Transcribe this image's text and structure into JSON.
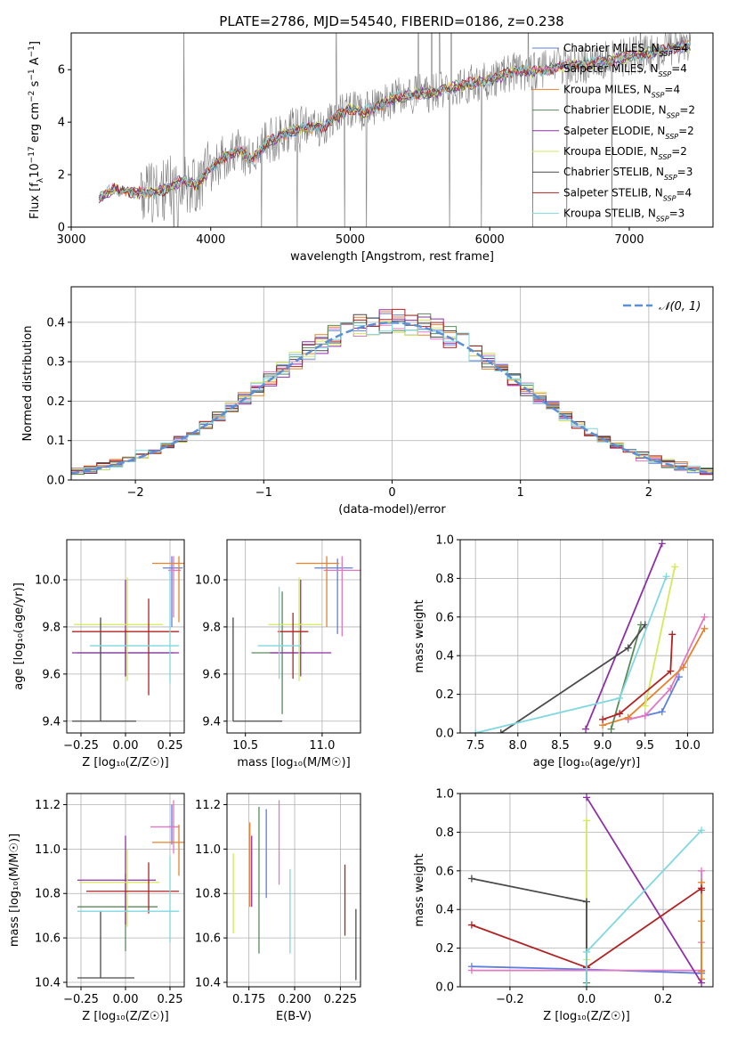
{
  "title": "PLATE=2786, MJD=54540, FIBERID=0186, z=0.238",
  "colors": {
    "Chabrier MILES": "#5b7fde",
    "Salpeter MILES": "#e377c2",
    "Kroupa MILES": "#e8812a",
    "Chabrier ELODIE": "#5a8a5a",
    "Salpeter ELODIE": "#8e2fa8",
    "Kroupa ELODIE": "#d4e85a",
    "Chabrier STELIB": "#4a4a4a",
    "Salpeter STELIB": "#b22222",
    "Kroupa STELIB": "#7fd8e0"
  },
  "chart_data": [
    {
      "id": "spectrum",
      "type": "line",
      "xlabel": "wavelength [Angstrom, rest frame]",
      "ylabel_parts": [
        "Flux [f",
        "λ",
        "10",
        "−17",
        " erg cm",
        "−2",
        " s",
        "−1",
        " A",
        "−1",
        "]"
      ],
      "xlim": [
        3000,
        7600
      ],
      "ylim": [
        0,
        7.4
      ],
      "xticks": [
        3000,
        4000,
        5000,
        6000,
        7000
      ],
      "yticks": [
        0,
        2,
        4,
        6
      ],
      "data_color": "#808080",
      "model_x": [
        3200,
        3300,
        3400,
        3500,
        3600,
        3700,
        3800,
        3900,
        4000,
        4100,
        4200,
        4300,
        4400,
        4500,
        4600,
        4700,
        4800,
        4900,
        5000,
        5100,
        5200,
        5300,
        5400,
        5500,
        5600,
        5700,
        5800,
        5900,
        6000,
        6100,
        6200,
        6300,
        6400,
        6500,
        6600,
        6700,
        6800,
        6900,
        7000,
        7100,
        7200,
        7300,
        7400
      ],
      "model_y": [
        1.1,
        1.45,
        1.35,
        1.3,
        1.3,
        1.5,
        1.8,
        1.6,
        2.2,
        2.7,
        2.9,
        2.6,
        3.2,
        3.5,
        3.7,
        3.8,
        3.8,
        4.2,
        4.5,
        4.4,
        4.6,
        4.9,
        5.0,
        5.1,
        5.1,
        5.3,
        5.4,
        5.5,
        5.6,
        5.8,
        6.0,
        5.9,
        6.0,
        6.1,
        6.2,
        6.2,
        6.3,
        6.4,
        6.5,
        6.6,
        6.7,
        6.8,
        6.9
      ],
      "legend": [
        {
          "name": "Chabrier MILES",
          "n": "4"
        },
        {
          "name": "Salpeter MILES",
          "n": "4"
        },
        {
          "name": "Kroupa MILES",
          "n": "4"
        },
        {
          "name": "Chabrier ELODIE",
          "n": "2"
        },
        {
          "name": "Salpeter ELODIE",
          "n": "2"
        },
        {
          "name": "Kroupa ELODIE",
          "n": "2"
        },
        {
          "name": "Chabrier STELIB",
          "n": "3"
        },
        {
          "name": "Salpeter STELIB",
          "n": "4"
        },
        {
          "name": "Kroupa STELIB",
          "n": "3"
        }
      ],
      "legend_sub": "SSP",
      "legend_placement": "top-right"
    },
    {
      "id": "residuals",
      "type": "histogram",
      "xlabel": "(data-model)/error",
      "ylabel": "Normed distribution",
      "xlim": [
        -2.5,
        2.5
      ],
      "ylim": [
        0,
        0.49
      ],
      "xticks": [
        -2,
        -1,
        0,
        1,
        2
      ],
      "xticklabels": [
        "−2",
        "−1",
        "0",
        "1",
        "2"
      ],
      "yticks": [
        0,
        0.1,
        0.2,
        0.3,
        0.4
      ],
      "yticklabels": [
        "0.0",
        "0.1",
        "0.2",
        "0.3",
        "0.4"
      ],
      "grid": true,
      "bin_width": 0.1,
      "legend_label": "𝒩(0, 1)",
      "legend_placement": "top-right",
      "normal_color": "#5b8fd6"
    },
    {
      "id": "age-vs-Z",
      "type": "errorbar",
      "xlabel": "Z [log₁₀(Z/Z☉)]",
      "ylabel": "age  [log₁₀(age/yr)]",
      "xlim": [
        -0.33,
        0.33
      ],
      "ylim": [
        9.35,
        10.17
      ],
      "xticks": [
        -0.25,
        0,
        0.25
      ],
      "xticklabels": [
        "−0.25",
        "0.00",
        "0.25"
      ],
      "yticks": [
        9.4,
        9.6,
        9.8,
        10.0
      ],
      "yticklabels": [
        "9.4",
        "9.6",
        "9.8",
        "10.0"
      ],
      "points": [
        {
          "c": "Chabrier MILES",
          "x": 0.26,
          "xe": [
            0.05,
            0.06
          ],
          "y": 10.05,
          "ye": [
            0.25,
            0.05
          ]
        },
        {
          "c": "Salpeter MILES",
          "x": 0.27,
          "xe": [
            0.03,
            0.04
          ],
          "y": 10.04,
          "ye": [
            0.2,
            0.06
          ]
        },
        {
          "c": "Kroupa MILES",
          "x": 0.3,
          "xe": [
            0.15,
            0.03
          ],
          "y": 10.07,
          "ye": [
            0.25,
            0.03
          ]
        },
        {
          "c": "Chabrier ELODIE",
          "x": 0.0,
          "xe": [
            0.27,
            0.27
          ],
          "y": 9.69,
          "ye": [
            0.1,
            0.1
          ]
        },
        {
          "c": "Salpeter ELODIE",
          "x": 0.0,
          "xe": [
            0.3,
            0.3
          ],
          "y": 9.69,
          "ye": [
            0.1,
            0.31
          ]
        },
        {
          "c": "Kroupa ELODIE",
          "x": 0.01,
          "xe": [
            0.3,
            0.2
          ],
          "y": 9.81,
          "ye": [
            0.24,
            0.2
          ]
        },
        {
          "c": "Chabrier STELIB",
          "x": -0.14,
          "xe": [
            0.16,
            0.2
          ],
          "y": 9.4,
          "ye": [
            0.0,
            0.44
          ]
        },
        {
          "c": "Salpeter STELIB",
          "x": 0.13,
          "xe": [
            0.43,
            0.17
          ],
          "y": 9.78,
          "ye": [
            0.27,
            0.14
          ]
        },
        {
          "c": "Kroupa STELIB",
          "x": 0.25,
          "xe": [
            0.45,
            0.05
          ],
          "y": 9.72,
          "ye": [
            0.16,
            0.32
          ]
        }
      ]
    },
    {
      "id": "age-vs-mass",
      "type": "errorbar",
      "xlabel": "mass [log₁₀(M/M☉)]",
      "xlim": [
        10.38,
        11.25
      ],
      "ylim": [
        9.35,
        10.17
      ],
      "xticks": [
        10.5,
        11.0
      ],
      "xticklabels": [
        "10.5",
        "11.0"
      ],
      "yticks": [
        9.4,
        9.6,
        9.8,
        10.0
      ],
      "yticklabels": [
        "9.4",
        "9.6",
        "9.8",
        "10.0"
      ],
      "points": [
        {
          "c": "Chabrier MILES",
          "x": 11.1,
          "xe": [
            0.15,
            0.1
          ],
          "y": 10.05,
          "ye": [
            0.28,
            0.04
          ]
        },
        {
          "c": "Salpeter MILES",
          "x": 11.13,
          "xe": [
            0.12,
            0.12
          ],
          "y": 10.04,
          "ye": [
            0.28,
            0.06
          ]
        },
        {
          "c": "Kroupa MILES",
          "x": 11.03,
          "xe": [
            0.2,
            0.08
          ],
          "y": 10.07,
          "ye": [
            0.27,
            0.03
          ]
        },
        {
          "c": "Chabrier ELODIE",
          "x": 10.74,
          "xe": [
            0.2,
            0.15
          ],
          "y": 9.69,
          "ye": [
            0.26,
            0.26
          ]
        },
        {
          "c": "Salpeter ELODIE",
          "x": 10.86,
          "xe": [
            0.2,
            0.2
          ],
          "y": 9.69,
          "ye": [
            0.1,
            0.31
          ]
        },
        {
          "c": "Kroupa ELODIE",
          "x": 10.85,
          "xe": [
            0.2,
            0.15
          ],
          "y": 9.81,
          "ye": [
            0.24,
            0.2
          ]
        },
        {
          "c": "Chabrier STELIB",
          "x": 10.42,
          "xe": [
            0.0,
            0.32
          ],
          "y": 9.4,
          "ye": [
            0.0,
            0.44
          ]
        },
        {
          "c": "Salpeter STELIB",
          "x": 10.81,
          "xe": [
            0.1,
            0.1
          ],
          "y": 9.78,
          "ye": [
            0.2,
            0.08
          ]
        },
        {
          "c": "Kroupa STELIB",
          "x": 10.72,
          "xe": [
            0.14,
            0.14
          ],
          "y": 9.72,
          "ye": [
            0.14,
            0.25
          ]
        }
      ]
    },
    {
      "id": "massweight-vs-age",
      "type": "line",
      "xlabel": "age  [log₁₀(age/yr)]",
      "ylabel": "mass weight",
      "xlim": [
        7.32,
        10.3
      ],
      "ylim": [
        0,
        1.0
      ],
      "xticks": [
        7.5,
        8.0,
        8.5,
        9.0,
        9.5,
        10.0
      ],
      "xticklabels": [
        "7.5",
        "8.0",
        "8.5",
        "9.0",
        "9.5",
        "10.0"
      ],
      "yticks": [
        0,
        0.2,
        0.4,
        0.6,
        0.8,
        1.0
      ],
      "yticklabels": [
        "0.0",
        "0.2",
        "0.4",
        "0.6",
        "0.8",
        "1.0"
      ],
      "series": [
        {
          "c": "Chabrier MILES",
          "x": [
            9.3,
            9.5,
            9.7,
            9.9
          ],
          "y": [
            0.07,
            0.09,
            0.11,
            0.29
          ]
        },
        {
          "c": "Salpeter MILES",
          "x": [
            9.3,
            9.5,
            9.8,
            10.2
          ],
          "y": [
            0.07,
            0.09,
            0.23,
            0.6
          ]
        },
        {
          "c": "Kroupa MILES",
          "x": [
            9.0,
            9.3,
            9.95,
            10.2
          ],
          "y": [
            0.04,
            0.08,
            0.34,
            0.54
          ]
        },
        {
          "c": "Chabrier ELODIE",
          "x": [
            9.1,
            9.45
          ],
          "y": [
            0.02,
            0.56
          ]
        },
        {
          "c": "Salpeter ELODIE",
          "x": [
            8.8,
            9.7
          ],
          "y": [
            0.02,
            0.98
          ]
        },
        {
          "c": "Kroupa ELODIE",
          "x": [
            9.5,
            9.85
          ],
          "y": [
            0.14,
            0.86
          ]
        },
        {
          "c": "Chabrier STELIB",
          "x": [
            7.8,
            9.3,
            9.5
          ],
          "y": [
            0.0,
            0.44,
            0.56
          ]
        },
        {
          "c": "Salpeter STELIB",
          "x": [
            9.0,
            9.2,
            9.8,
            9.82
          ],
          "y": [
            0.07,
            0.1,
            0.32,
            0.51
          ]
        },
        {
          "c": "Kroupa STELIB",
          "x": [
            7.5,
            9.2,
            9.75
          ],
          "y": [
            0.0,
            0.18,
            0.81
          ]
        }
      ]
    },
    {
      "id": "mass-vs-Z",
      "type": "errorbar",
      "xlabel": "Z [log₁₀(Z/Z☉)]",
      "ylabel": "mass [log₁₀(M/M☉)]",
      "xlim": [
        -0.33,
        0.33
      ],
      "ylim": [
        10.38,
        11.25
      ],
      "xticks": [
        -0.25,
        0,
        0.25
      ],
      "xticklabels": [
        "−0.25",
        "0.00",
        "0.25"
      ],
      "yticks": [
        10.4,
        10.6,
        10.8,
        11.0,
        11.2
      ],
      "yticklabels": [
        "10.4",
        "10.6",
        "10.8",
        "11.0",
        "11.2"
      ],
      "points": [
        {
          "c": "Chabrier MILES",
          "x": 0.26,
          "xe": [
            0.02,
            0.02
          ],
          "y": 11.1,
          "ye": [
            0.08,
            0.1
          ]
        },
        {
          "c": "Salpeter MILES",
          "x": 0.27,
          "xe": [
            0.13,
            0.03
          ],
          "y": 11.1,
          "ye": [
            0.12,
            0.12
          ]
        },
        {
          "c": "Kroupa MILES",
          "x": 0.3,
          "xe": [
            0.15,
            0.03
          ],
          "y": 11.03,
          "ye": [
            0.15,
            0.08
          ]
        },
        {
          "c": "Chabrier ELODIE",
          "x": 0.0,
          "xe": [
            0.27,
            0.18
          ],
          "y": 10.74,
          "ye": [
            0.2,
            0.15
          ]
        },
        {
          "c": "Salpeter ELODIE",
          "x": 0.0,
          "xe": [
            0.27,
            0.17
          ],
          "y": 10.86,
          "ye": [
            0.2,
            0.2
          ]
        },
        {
          "c": "Kroupa ELODIE",
          "x": 0.01,
          "xe": [
            0.27,
            0.18
          ],
          "y": 10.85,
          "ye": [
            0.2,
            0.15
          ]
        },
        {
          "c": "Chabrier STELIB",
          "x": -0.14,
          "xe": [
            0.13,
            0.19
          ],
          "y": 10.42,
          "ye": [
            0.0,
            0.3
          ]
        },
        {
          "c": "Salpeter STELIB",
          "x": 0.13,
          "xe": [
            0.35,
            0.17
          ],
          "y": 10.81,
          "ye": [
            0.1,
            0.13
          ]
        },
        {
          "c": "Kroupa STELIB",
          "x": 0.25,
          "xe": [
            0.52,
            0.05
          ],
          "y": 10.72,
          "ye": [
            0.14,
            0.25
          ]
        }
      ]
    },
    {
      "id": "mass-vs-ebv",
      "type": "errorbar",
      "xlabel": "E(B-V)",
      "xlim": [
        0.163,
        0.236
      ],
      "ylim": [
        10.38,
        11.25
      ],
      "xticks": [
        0.175,
        0.2,
        0.225
      ],
      "xticklabels": [
        "0.175",
        "0.200",
        "0.225"
      ],
      "yticks": [
        10.4,
        10.6,
        10.8,
        11.0,
        11.2
      ],
      "yticklabels": [
        "10.4",
        "10.6",
        "10.8",
        "11.0",
        "11.2"
      ],
      "points": [
        {
          "c": "Kroupa ELODIE",
          "x": 0.1665,
          "xe": [
            0,
            0
          ],
          "y": 10.8,
          "ye": [
            0.18,
            0.18
          ]
        },
        {
          "c": "Kroupa MILES",
          "x": 0.1755,
          "xe": [
            0,
            0
          ],
          "y": 10.93,
          "ye": [
            0.19,
            0.19
          ]
        },
        {
          "c": "Salpeter ELODIE",
          "x": 0.1765,
          "xe": [
            0,
            0
          ],
          "y": 10.9,
          "ye": [
            0.16,
            0.16
          ]
        },
        {
          "c": "Chabrier ELODIE",
          "x": 0.1805,
          "xe": [
            0,
            0
          ],
          "y": 10.86,
          "ye": [
            0.33,
            0.33
          ]
        },
        {
          "c": "Chabrier MILES",
          "x": 0.1845,
          "xe": [
            0,
            0
          ],
          "y": 10.98,
          "ye": [
            0.2,
            0.2
          ]
        },
        {
          "c": "Salpeter MILES",
          "x": 0.1915,
          "xe": [
            0,
            0
          ],
          "y": 11.03,
          "ye": [
            0.19,
            0.19
          ]
        },
        {
          "c": "Kroupa STELIB",
          "x": 0.1975,
          "xe": [
            0,
            0
          ],
          "y": 10.72,
          "ye": [
            0.19,
            0.19
          ]
        },
        {
          "c": "Salpeter STELIB",
          "x": 0.2275,
          "xe": [
            0,
            0
          ],
          "y": 10.77,
          "ye": [
            0.16,
            0.16
          ]
        },
        {
          "c": "Chabrier STELIB",
          "x": 0.2335,
          "xe": [
            0,
            0
          ],
          "y": 10.57,
          "ye": [
            0.16,
            0.16
          ]
        }
      ]
    },
    {
      "id": "massweight-vs-Z",
      "type": "line",
      "xlabel": "Z [log₁₀(Z/Z☉)]",
      "ylabel": "mass weight",
      "xlim": [
        -0.33,
        0.33
      ],
      "ylim": [
        0,
        1.0
      ],
      "xticks": [
        -0.2,
        0,
        0.2
      ],
      "xticklabels": [
        "−0.2",
        "0.0",
        "0.2"
      ],
      "yticks": [
        0,
        0.2,
        0.4,
        0.6,
        0.8,
        1.0
      ],
      "yticklabels": [
        "0.0",
        "0.2",
        "0.4",
        "0.6",
        "0.8",
        "1.0"
      ],
      "series": [
        {
          "c": "Chabrier MILES",
          "x": [
            -0.3,
            0.0,
            0.3
          ],
          "y": [
            0.105,
            0.09,
            0.07
          ]
        },
        {
          "c": "Salpeter MILES",
          "x": [
            -0.3,
            0.0,
            0.3,
            0.3,
            0.3
          ],
          "y": [
            0.085,
            0.085,
            0.085,
            0.23,
            0.6
          ]
        },
        {
          "c": "Kroupa MILES",
          "x": [
            0.3,
            0.3,
            0.3,
            0.3
          ],
          "y": [
            0.04,
            0.08,
            0.34,
            0.54
          ]
        },
        {
          "c": "Chabrier ELODIE",
          "x": [
            0.0,
            0.0
          ],
          "y": [
            0.02,
            0.44
          ]
        },
        {
          "c": "Salpeter ELODIE",
          "x": [
            0.0,
            0.3
          ],
          "y": [
            0.98,
            0.02
          ]
        },
        {
          "c": "Kroupa ELODIE",
          "x": [
            0.0,
            0.0
          ],
          "y": [
            0.14,
            0.86
          ]
        },
        {
          "c": "Chabrier STELIB",
          "x": [
            -0.3,
            0.0,
            0.0
          ],
          "y": [
            0.56,
            0.44,
            0.0
          ]
        },
        {
          "c": "Salpeter STELIB",
          "x": [
            -0.3,
            0.0,
            0.3,
            0.3
          ],
          "y": [
            0.32,
            0.1,
            0.51,
            0.5
          ]
        },
        {
          "c": "Kroupa STELIB",
          "x": [
            0.0,
            0.0,
            0.3
          ],
          "y": [
            0.0,
            0.18,
            0.81
          ]
        }
      ]
    }
  ]
}
